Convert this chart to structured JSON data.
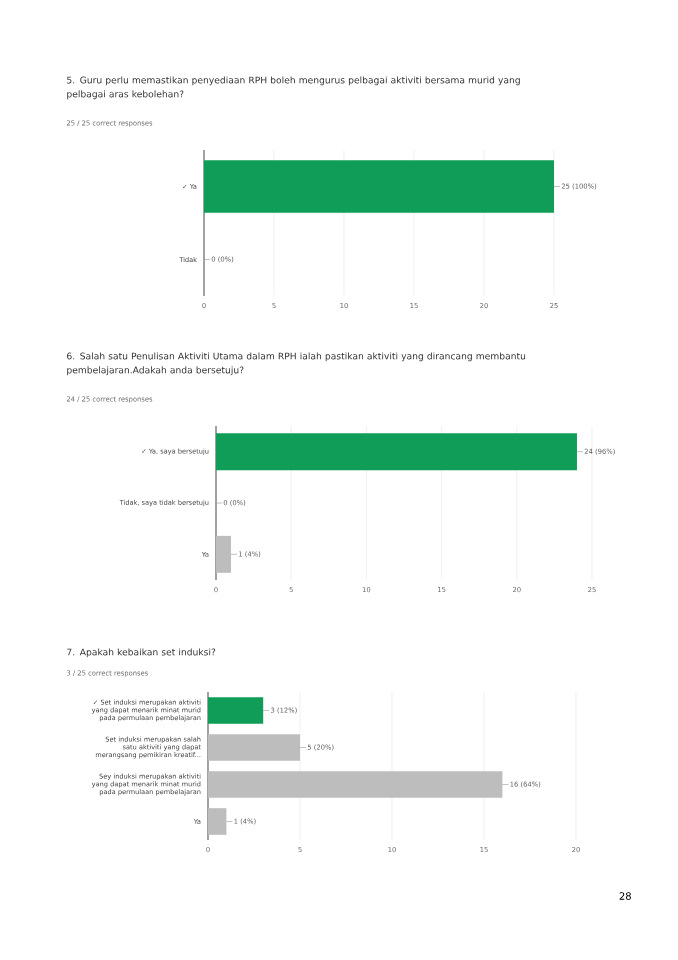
{
  "chart_data": [
    {
      "type": "bar",
      "orientation": "horizontal",
      "title": "5. Guru perlu memastikan penyediaan RPH boleh mengurus pelbagai aktiviti bersama murid yang pelbagai aras kebolehan?",
      "subtitle": "25 / 25 correct responses",
      "categories": [
        "✓ Ya",
        "Tidak"
      ],
      "values": [
        25,
        0
      ],
      "colors": [
        "#0f9d58",
        "#bdbdbd"
      ],
      "value_labels": [
        "25 (100%)",
        "0 (0%)"
      ],
      "xlim": [
        0,
        25
      ],
      "xticks": [
        0,
        5,
        10,
        15,
        20,
        25
      ],
      "grid": "x"
    },
    {
      "type": "bar",
      "orientation": "horizontal",
      "title": "6. Salah satu Penulisan Aktiviti Utama dalam RPH ialah pastikan aktiviti yang dirancang membantu pembelajaran.Adakah anda bersetuju?",
      "subtitle": "24 / 25 correct responses",
      "categories": [
        "✓ Ya, saya bersetuju",
        "Tidak, saya tidak bersetuju",
        "Ya"
      ],
      "values": [
        24,
        0,
        1
      ],
      "colors": [
        "#0f9d58",
        "#bdbdbd",
        "#bdbdbd"
      ],
      "value_labels": [
        "24 (96%)",
        "0 (0%)",
        "1 (4%)"
      ],
      "xlim": [
        0,
        25
      ],
      "xticks": [
        0,
        5,
        10,
        15,
        20,
        25
      ],
      "grid": "x"
    },
    {
      "type": "bar",
      "orientation": "horizontal",
      "title": "7. Apakah kebaikan set induksi?",
      "subtitle": "3 / 25 correct responses",
      "categories": [
        "✓ Set induksi merupakan aktiviti yang dapat menarik minat murid pada permulaan pembelajaran",
        "Set induksi merupakan salah satu aktiviti yang dapat merangsang pemikiran kreatif...",
        "Sey induksi merupakan aktiviti yang dapat menarik minat murid pada permulaan pembelajaran",
        "Ya"
      ],
      "values": [
        3,
        5,
        16,
        1
      ],
      "colors": [
        "#0f9d58",
        "#bdbdbd",
        "#bdbdbd",
        "#bdbdbd"
      ],
      "value_labels": [
        "3 (12%)",
        "5 (20%)",
        "16 (64%)",
        "1 (4%)"
      ],
      "xlim": [
        0,
        20
      ],
      "xticks": [
        0,
        5,
        10,
        15,
        20
      ],
      "grid": "x",
      "annotations": [
        "28"
      ]
    }
  ]
}
